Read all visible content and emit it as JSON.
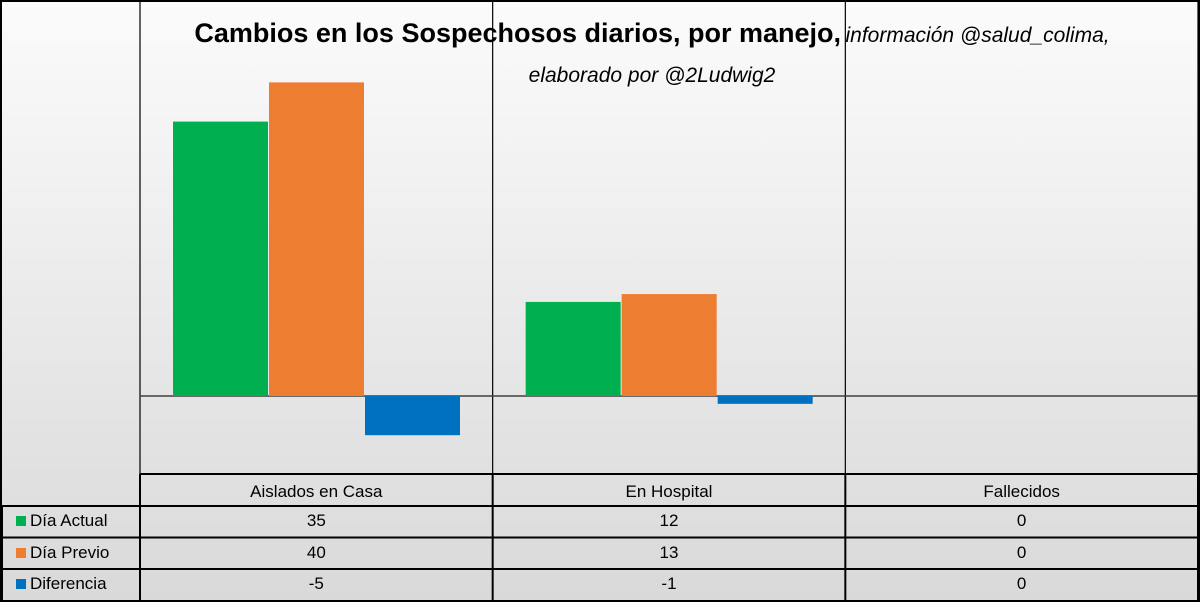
{
  "title": {
    "main": "Cambios en los Sospechosos diarios, por manejo,",
    "sub": "información @salud_colima,",
    "sub2": "elaborado por @2Ludwig2"
  },
  "chart_data": {
    "type": "bar",
    "title": "Cambios en los Sospechosos diarios, por manejo, información @salud_colima, elaborado por @2Ludwig2",
    "categories": [
      "Aislados en Casa",
      "En Hospital",
      "Fallecidos"
    ],
    "series": [
      {
        "name": "Día Actual",
        "values": [
          35,
          12,
          0
        ],
        "color": "#00b050"
      },
      {
        "name": "Día Previo",
        "values": [
          40,
          13,
          0
        ],
        "color": "#ed7d31"
      },
      {
        "name": "Diferencia",
        "values": [
          -5,
          -1,
          0
        ],
        "color": "#0070c0"
      }
    ],
    "ylim": [
      -10,
      45
    ],
    "xlabel": "",
    "ylabel": "",
    "legend": "data-table"
  }
}
